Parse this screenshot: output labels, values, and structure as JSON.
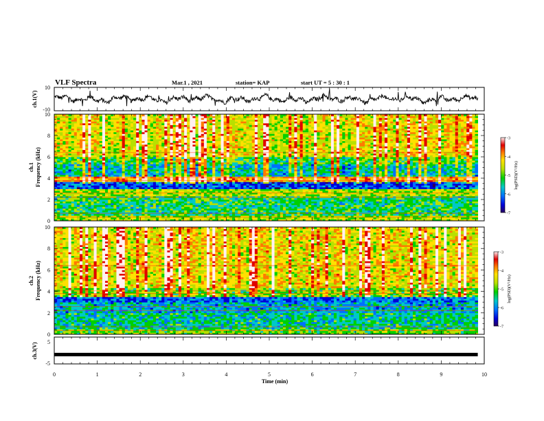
{
  "header": {
    "title": "VLF Spectra",
    "date": "Mar.1  , 2021",
    "station": "station= KAP",
    "start": "start  UT =   5  : 30 : 1"
  },
  "colors": {
    "waveform": "#000000",
    "spectrogram_scale": [
      "#2a005f",
      "#0000d8",
      "#0070ff",
      "#00c8c8",
      "#00d000",
      "#b8e000",
      "#ffe000",
      "#ff7a00",
      "#e00000",
      "#fff0f0"
    ]
  },
  "chart_data": [
    {
      "type": "line",
      "name": "ch1-waveform",
      "ylabel": "ch.1(V)",
      "y_tick_labels": [
        "10",
        "-10"
      ],
      "ylim": [
        -10,
        10
      ],
      "xlim": [
        0,
        10
      ],
      "description_of_trace": "noisy oscillating waveform mostly between -5 and 5 V",
      "y_range_visible": [
        -6,
        9
      ]
    },
    {
      "type": "heatmap",
      "name": "ch1-spectrogram",
      "ylabel": "ch.1",
      "ylabel2": "Frequency  (kHz)",
      "y_tick_labels": [
        "0",
        "2",
        "4",
        "6",
        "8",
        "10"
      ],
      "ylim": [
        0,
        10
      ],
      "xlim": [
        0,
        10
      ],
      "colorbar": {
        "label": "log(PSD)(V²/Hz)",
        "tick_labels": [
          "-3",
          "-4",
          "-5",
          "-6",
          "-7"
        ],
        "range": [
          -7,
          -3
        ]
      },
      "bands_khz": [
        {
          "from": 0,
          "to": 0.5,
          "level": 0.55
        },
        {
          "from": 0.5,
          "to": 2.4,
          "level": 0.42
        },
        {
          "from": 2.4,
          "to": 3.0,
          "level": 0.55
        },
        {
          "from": 3.0,
          "to": 3.7,
          "level": 0.22
        },
        {
          "from": 3.7,
          "to": 4.1,
          "level": 0.7
        },
        {
          "from": 4.1,
          "to": 5.3,
          "level": 0.35
        },
        {
          "from": 5.3,
          "to": 6.0,
          "level": 0.45
        },
        {
          "from": 6.0,
          "to": 10.0,
          "level": 0.6
        }
      ]
    },
    {
      "type": "heatmap",
      "name": "ch2-spectrogram",
      "ylabel": "ch.2",
      "ylabel2": "Frequency  (kHz)",
      "y_tick_labels": [
        "0",
        "2",
        "4",
        "6",
        "8",
        "10"
      ],
      "ylim": [
        0,
        10
      ],
      "xlim": [
        0,
        10
      ],
      "colorbar": {
        "label": "log(PSD)(V²/Hz)",
        "tick_labels": [
          "-3",
          "-4",
          "-5",
          "-6",
          "-7"
        ],
        "range": [
          -7,
          -3
        ]
      },
      "bands_khz": [
        {
          "from": 0,
          "to": 0.5,
          "level": 0.5
        },
        {
          "from": 0.5,
          "to": 2.0,
          "level": 0.38
        },
        {
          "from": 2.0,
          "to": 3.0,
          "level": 0.32
        },
        {
          "from": 3.0,
          "to": 3.5,
          "level": 0.25
        },
        {
          "from": 3.5,
          "to": 4.4,
          "level": 0.5
        },
        {
          "from": 4.4,
          "to": 10.0,
          "level": 0.62
        }
      ]
    },
    {
      "type": "line",
      "name": "ch3-waveform",
      "ylabel": "ch.3(V)",
      "y_tick_labels": [
        "5",
        "-5"
      ],
      "ylim": [
        -5,
        5
      ],
      "xlim": [
        0,
        10
      ],
      "trace_level": -1.5
    }
  ],
  "xaxis": {
    "label": "Time  (min)",
    "tick_labels": [
      "0",
      "1",
      "2",
      "3",
      "4",
      "5",
      "6",
      "7",
      "8",
      "9",
      "10"
    ],
    "range": [
      0,
      10
    ]
  }
}
